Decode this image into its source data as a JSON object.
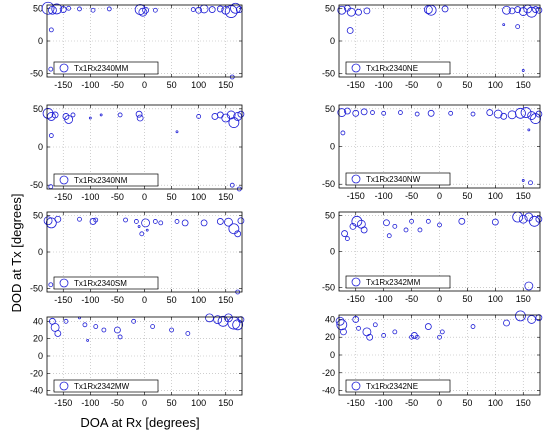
{
  "figure": {
    "xlabel": "DOA at Rx [degrees]",
    "ylabel": "DOD at Tx [degrees]"
  },
  "chart_data": [
    {
      "type": "scatter",
      "legend": "Tx1Rx2340MM",
      "legend_placement": "bottom-left",
      "grid": true,
      "xlim": [
        -180,
        180
      ],
      "ylim": [
        -55,
        55
      ],
      "xticks": [
        -150,
        -100,
        -50,
        0,
        50,
        100,
        150
      ],
      "yticks": [
        -50,
        0,
        50
      ],
      "points": [
        {
          "x": -178,
          "y": 50,
          "s": 6
        },
        {
          "x": -170,
          "y": 47,
          "s": 4
        },
        {
          "x": -162,
          "y": 49,
          "s": 5
        },
        {
          "x": -150,
          "y": 48,
          "s": 3
        },
        {
          "x": -140,
          "y": 50,
          "s": 2
        },
        {
          "x": -120,
          "y": 49,
          "s": 2
        },
        {
          "x": -95,
          "y": 47,
          "s": 2
        },
        {
          "x": -65,
          "y": 49,
          "s": 2
        },
        {
          "x": -8,
          "y": 48,
          "s": 5
        },
        {
          "x": -3,
          "y": 44,
          "s": 4
        },
        {
          "x": 2,
          "y": 47,
          "s": 3
        },
        {
          "x": 20,
          "y": 47,
          "s": 2
        },
        {
          "x": 90,
          "y": 48,
          "s": 2
        },
        {
          "x": 100,
          "y": 47,
          "s": 3
        },
        {
          "x": 110,
          "y": 49,
          "s": 4
        },
        {
          "x": 125,
          "y": 48,
          "s": 3
        },
        {
          "x": 140,
          "y": 49,
          "s": 3
        },
        {
          "x": 150,
          "y": 47,
          "s": 4
        },
        {
          "x": 160,
          "y": 45,
          "s": 6
        },
        {
          "x": 168,
          "y": 50,
          "s": 5
        },
        {
          "x": 175,
          "y": 48,
          "s": 3
        },
        {
          "x": -172,
          "y": 17,
          "s": 2
        },
        {
          "x": -173,
          "y": -43,
          "s": 2
        },
        {
          "x": 162,
          "y": -55,
          "s": 2
        }
      ]
    },
    {
      "type": "scatter",
      "legend": "Tx1Rx2340NE",
      "legend_placement": "bottom-left",
      "grid": true,
      "xlim": [
        -180,
        180
      ],
      "ylim": [
        -55,
        55
      ],
      "xticks": [
        -150,
        -100,
        -50,
        0,
        50,
        100,
        150
      ],
      "yticks": [
        -50,
        0,
        50
      ],
      "points": [
        {
          "x": -175,
          "y": 47,
          "s": 4
        },
        {
          "x": -165,
          "y": 50,
          "s": 3
        },
        {
          "x": -158,
          "y": 44,
          "s": 4
        },
        {
          "x": -145,
          "y": 44,
          "s": 3
        },
        {
          "x": -130,
          "y": 46,
          "s": 3
        },
        {
          "x": -160,
          "y": 16,
          "s": 3
        },
        {
          "x": -20,
          "y": 48,
          "s": 4
        },
        {
          "x": -15,
          "y": 47,
          "s": 5
        },
        {
          "x": 10,
          "y": 49,
          "s": 3
        },
        {
          "x": 120,
          "y": 47,
          "s": 4
        },
        {
          "x": 130,
          "y": 46,
          "s": 3
        },
        {
          "x": 140,
          "y": 48,
          "s": 3
        },
        {
          "x": 150,
          "y": 45,
          "s": 4
        },
        {
          "x": 158,
          "y": 49,
          "s": 4
        },
        {
          "x": 165,
          "y": 44,
          "s": 5
        },
        {
          "x": 172,
          "y": 48,
          "s": 3
        },
        {
          "x": 178,
          "y": 47,
          "s": 3
        },
        {
          "x": 115,
          "y": 25,
          "s": 1
        },
        {
          "x": 140,
          "y": 22,
          "s": 2
        },
        {
          "x": 150,
          "y": -45,
          "s": 1
        }
      ]
    },
    {
      "type": "scatter",
      "legend": "Tx1Rx2340NM",
      "legend_placement": "bottom-left",
      "grid": true,
      "xlim": [
        -180,
        180
      ],
      "ylim": [
        -55,
        55
      ],
      "xticks": [
        -150,
        -100,
        -50,
        0,
        50,
        100,
        150
      ],
      "yticks": [
        -50,
        0,
        50
      ],
      "points": [
        {
          "x": -178,
          "y": 44,
          "s": 5
        },
        {
          "x": -172,
          "y": 40,
          "s": 4
        },
        {
          "x": -165,
          "y": 42,
          "s": 3
        },
        {
          "x": -145,
          "y": 40,
          "s": 3
        },
        {
          "x": -140,
          "y": 36,
          "s": 4
        },
        {
          "x": -132,
          "y": 42,
          "s": 2
        },
        {
          "x": -100,
          "y": 38,
          "s": 1
        },
        {
          "x": -80,
          "y": 42,
          "s": 1
        },
        {
          "x": -45,
          "y": 42,
          "s": 2
        },
        {
          "x": -10,
          "y": 43,
          "s": 3
        },
        {
          "x": -8,
          "y": 38,
          "s": 3
        },
        {
          "x": 60,
          "y": 20,
          "s": 1
        },
        {
          "x": 100,
          "y": 40,
          "s": 2
        },
        {
          "x": 130,
          "y": 40,
          "s": 3
        },
        {
          "x": 140,
          "y": 42,
          "s": 3
        },
        {
          "x": 150,
          "y": 38,
          "s": 4
        },
        {
          "x": 160,
          "y": 42,
          "s": 4
        },
        {
          "x": 165,
          "y": 32,
          "s": 5
        },
        {
          "x": 172,
          "y": 40,
          "s": 4
        },
        {
          "x": 178,
          "y": 43,
          "s": 3
        },
        {
          "x": -172,
          "y": 15,
          "s": 2
        },
        {
          "x": -173,
          "y": -52,
          "s": 2
        },
        {
          "x": 162,
          "y": -50,
          "s": 2
        },
        {
          "x": 175,
          "y": -58,
          "s": 2
        }
      ]
    },
    {
      "type": "scatter",
      "legend": "Tx1Rx2340NW",
      "legend_placement": "bottom-left",
      "grid": true,
      "xlim": [
        -180,
        180
      ],
      "ylim": [
        -55,
        55
      ],
      "xticks": [
        -150,
        -100,
        -50,
        0,
        50,
        100,
        150
      ],
      "yticks": [
        -50,
        0,
        50
      ],
      "points": [
        {
          "x": -175,
          "y": 45,
          "s": 4
        },
        {
          "x": -165,
          "y": 47,
          "s": 3
        },
        {
          "x": -150,
          "y": 44,
          "s": 3
        },
        {
          "x": -135,
          "y": 46,
          "s": 3
        },
        {
          "x": -120,
          "y": 45,
          "s": 2
        },
        {
          "x": -100,
          "y": 44,
          "s": 2
        },
        {
          "x": -70,
          "y": 45,
          "s": 2
        },
        {
          "x": -40,
          "y": 43,
          "s": 2
        },
        {
          "x": -15,
          "y": 44,
          "s": 3
        },
        {
          "x": 20,
          "y": 44,
          "s": 2
        },
        {
          "x": 60,
          "y": 43,
          "s": 2
        },
        {
          "x": 90,
          "y": 45,
          "s": 3
        },
        {
          "x": 105,
          "y": 43,
          "s": 4
        },
        {
          "x": 115,
          "y": 40,
          "s": 3
        },
        {
          "x": 130,
          "y": 42,
          "s": 4
        },
        {
          "x": 145,
          "y": 44,
          "s": 5
        },
        {
          "x": 155,
          "y": 45,
          "s": 5
        },
        {
          "x": 165,
          "y": 41,
          "s": 4
        },
        {
          "x": 172,
          "y": 37,
          "s": 5
        },
        {
          "x": 178,
          "y": 43,
          "s": 3
        },
        {
          "x": -173,
          "y": 18,
          "s": 2
        },
        {
          "x": 160,
          "y": 22,
          "s": 1
        },
        {
          "x": 150,
          "y": -45,
          "s": 1
        },
        {
          "x": 163,
          "y": -48,
          "s": 2
        }
      ]
    },
    {
      "type": "scatter",
      "legend": "Tx1Rx2340SM",
      "legend_placement": "bottom-left",
      "grid": true,
      "xlim": [
        -180,
        180
      ],
      "ylim": [
        -55,
        55
      ],
      "xticks": [
        -150,
        -100,
        -50,
        0,
        50,
        100,
        150
      ],
      "yticks": [
        -50,
        0,
        50
      ],
      "points": [
        {
          "x": -178,
          "y": 43,
          "s": 4
        },
        {
          "x": -172,
          "y": 40,
          "s": 5
        },
        {
          "x": -160,
          "y": 45,
          "s": 3
        },
        {
          "x": -120,
          "y": 45,
          "s": 2
        },
        {
          "x": -95,
          "y": 42,
          "s": 3
        },
        {
          "x": -90,
          "y": 44,
          "s": 2
        },
        {
          "x": -35,
          "y": 44,
          "s": 2
        },
        {
          "x": -15,
          "y": 42,
          "s": 2
        },
        {
          "x": -10,
          "y": 35,
          "s": 1
        },
        {
          "x": -5,
          "y": 25,
          "s": 2
        },
        {
          "x": 2,
          "y": 40,
          "s": 4
        },
        {
          "x": 5,
          "y": 30,
          "s": 1
        },
        {
          "x": 20,
          "y": 42,
          "s": 2
        },
        {
          "x": 30,
          "y": 40,
          "s": 2
        },
        {
          "x": 60,
          "y": 42,
          "s": 2
        },
        {
          "x": 75,
          "y": 40,
          "s": 3
        },
        {
          "x": 110,
          "y": 40,
          "s": 3
        },
        {
          "x": 140,
          "y": 42,
          "s": 3
        },
        {
          "x": 155,
          "y": 41,
          "s": 4
        },
        {
          "x": 165,
          "y": 32,
          "s": 5
        },
        {
          "x": 172,
          "y": 25,
          "s": 3
        },
        {
          "x": 178,
          "y": 43,
          "s": 3
        },
        {
          "x": -173,
          "y": -45,
          "s": 2
        },
        {
          "x": 172,
          "y": -55,
          "s": 2
        }
      ]
    },
    {
      "type": "scatter",
      "legend": "Tx1Rx2342MM",
      "legend_placement": "bottom-left",
      "grid": true,
      "xlim": [
        -180,
        180
      ],
      "ylim": [
        -55,
        55
      ],
      "xticks": [
        -150,
        -100,
        -50,
        0,
        50,
        100,
        150
      ],
      "yticks": [
        -50,
        0,
        50
      ],
      "points": [
        {
          "x": -170,
          "y": 25,
          "s": 3
        },
        {
          "x": -155,
          "y": 35,
          "s": 3
        },
        {
          "x": -148,
          "y": 42,
          "s": 5
        },
        {
          "x": -140,
          "y": 38,
          "s": 4
        },
        {
          "x": -135,
          "y": 30,
          "s": 3
        },
        {
          "x": -165,
          "y": 18,
          "s": 2
        },
        {
          "x": -95,
          "y": 40,
          "s": 3
        },
        {
          "x": -90,
          "y": 22,
          "s": 2
        },
        {
          "x": -80,
          "y": 35,
          "s": 2
        },
        {
          "x": -60,
          "y": 30,
          "s": 2
        },
        {
          "x": -50,
          "y": 42,
          "s": 2
        },
        {
          "x": -35,
          "y": 30,
          "s": 2
        },
        {
          "x": -20,
          "y": 42,
          "s": 2
        },
        {
          "x": 0,
          "y": 37,
          "s": 2
        },
        {
          "x": 40,
          "y": 42,
          "s": 3
        },
        {
          "x": 100,
          "y": 41,
          "s": 3
        },
        {
          "x": 140,
          "y": 48,
          "s": 5
        },
        {
          "x": 150,
          "y": 45,
          "s": 4
        },
        {
          "x": 160,
          "y": 48,
          "s": 4
        },
        {
          "x": 170,
          "y": 42,
          "s": 5
        },
        {
          "x": 178,
          "y": 45,
          "s": 3
        },
        {
          "x": -50,
          "y": -48,
          "s": 1
        },
        {
          "x": 160,
          "y": -48,
          "s": 4
        }
      ]
    },
    {
      "type": "scatter",
      "legend": "Tx1Rx2342MW",
      "legend_placement": "bottom-left",
      "grid": true,
      "xlim": [
        -180,
        180
      ],
      "ylim": [
        -45,
        45
      ],
      "xticks": [
        -150,
        -100,
        -50,
        0,
        50,
        100,
        150
      ],
      "yticks": [
        -40,
        -20,
        0,
        20,
        40
      ],
      "points": [
        {
          "x": -170,
          "y": 40,
          "s": 3
        },
        {
          "x": -165,
          "y": 33,
          "s": 4
        },
        {
          "x": -160,
          "y": 26,
          "s": 3
        },
        {
          "x": -145,
          "y": 40,
          "s": 2
        },
        {
          "x": -120,
          "y": 44,
          "s": 1
        },
        {
          "x": -110,
          "y": 36,
          "s": 2
        },
        {
          "x": -105,
          "y": 18,
          "s": 1
        },
        {
          "x": -90,
          "y": 34,
          "s": 2
        },
        {
          "x": -75,
          "y": 30,
          "s": 2
        },
        {
          "x": -50,
          "y": 30,
          "s": 3
        },
        {
          "x": -45,
          "y": 22,
          "s": 2
        },
        {
          "x": -20,
          "y": 40,
          "s": 2
        },
        {
          "x": 15,
          "y": 34,
          "s": 2
        },
        {
          "x": 50,
          "y": 30,
          "s": 2
        },
        {
          "x": 80,
          "y": 26,
          "s": 2
        },
        {
          "x": 120,
          "y": 44,
          "s": 4
        },
        {
          "x": 135,
          "y": 42,
          "s": 4
        },
        {
          "x": 145,
          "y": 40,
          "s": 5
        },
        {
          "x": 155,
          "y": 44,
          "s": 4
        },
        {
          "x": 165,
          "y": 38,
          "s": 6
        },
        {
          "x": 172,
          "y": 36,
          "s": 5
        },
        {
          "x": 178,
          "y": 42,
          "s": 3
        }
      ]
    },
    {
      "type": "scatter",
      "legend": "Tx1Rx2342NE",
      "legend_placement": "bottom-left",
      "grid": true,
      "xlim": [
        -180,
        180
      ],
      "ylim": [
        -45,
        45
      ],
      "xticks": [
        -150,
        -100,
        -50,
        0,
        50,
        100,
        150
      ],
      "yticks": [
        -40,
        -20,
        0,
        20,
        40
      ],
      "points": [
        {
          "x": -178,
          "y": 38,
          "s": 4
        },
        {
          "x": -175,
          "y": 34,
          "s": 5
        },
        {
          "x": -172,
          "y": 26,
          "s": 3
        },
        {
          "x": -150,
          "y": 40,
          "s": 3
        },
        {
          "x": -145,
          "y": 30,
          "s": 2
        },
        {
          "x": -130,
          "y": 26,
          "s": 4
        },
        {
          "x": -125,
          "y": 20,
          "s": 3
        },
        {
          "x": -115,
          "y": 34,
          "s": 2
        },
        {
          "x": -100,
          "y": 22,
          "s": 2
        },
        {
          "x": -80,
          "y": 26,
          "s": 2
        },
        {
          "x": -50,
          "y": 20,
          "s": 2
        },
        {
          "x": -45,
          "y": 22,
          "s": 3
        },
        {
          "x": -40,
          "y": 20,
          "s": 2
        },
        {
          "x": -20,
          "y": 32,
          "s": 3
        },
        {
          "x": 0,
          "y": 20,
          "s": 2
        },
        {
          "x": 5,
          "y": 26,
          "s": 2
        },
        {
          "x": 60,
          "y": 32,
          "s": 2
        },
        {
          "x": 120,
          "y": 36,
          "s": 3
        },
        {
          "x": 145,
          "y": 44,
          "s": 5
        },
        {
          "x": 165,
          "y": 40,
          "s": 4
        },
        {
          "x": 178,
          "y": 42,
          "s": 3
        }
      ]
    }
  ]
}
